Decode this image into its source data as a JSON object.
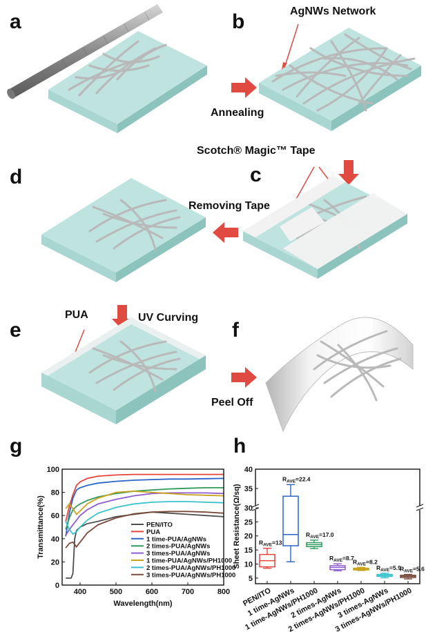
{
  "panels": {
    "a": "a",
    "b": "b",
    "c": "c",
    "d": "d",
    "e": "e",
    "f": "f",
    "g": "g",
    "h": "h"
  },
  "labels": {
    "agnws_network": "AgNWs Network",
    "annealing": "Annealing",
    "tape": "Scotch® Magic™ Tape",
    "removing_tape": "Removing Tape",
    "pua": "PUA",
    "uv_curving": "UV Curving",
    "peel_off": "Peel Off"
  },
  "colors": {
    "substrate_top": "#bfe3df",
    "substrate_front": "#a9d6d1",
    "substrate_side": "#8cc3bd",
    "wire": "#b9b9b9",
    "arrow": "#e04a41",
    "tape": "#f2f2f2"
  },
  "chart_data": [
    {
      "type": "line",
      "panel": "g",
      "xlabel": "Wavelength(nm)",
      "ylabel": "Transmittance(%)",
      "xlim": [
        350,
        800
      ],
      "ylim": [
        0,
        100
      ],
      "xticks": [
        400,
        500,
        600,
        700,
        800
      ],
      "yticks": [
        0,
        20,
        40,
        60,
        80,
        100
      ],
      "legend_position": "bottom-right",
      "series": [
        {
          "name": "PEN/ITO",
          "color": "#4d4d4d",
          "x": [
            360,
            375,
            380,
            385,
            390,
            400,
            420,
            450,
            500,
            550,
            600,
            650,
            700,
            750,
            800
          ],
          "y": [
            6,
            6,
            10,
            40,
            47,
            50,
            53,
            55,
            59,
            61,
            63,
            62,
            61,
            60,
            59
          ]
        },
        {
          "name": "PUA",
          "color": "#e8413a",
          "x": [
            360,
            370,
            380,
            390,
            400,
            420,
            450,
            500,
            550,
            600,
            700,
            800
          ],
          "y": [
            55,
            68,
            78,
            86,
            89,
            92,
            94,
            95,
            95.5,
            95.5,
            95.5,
            95.5
          ]
        },
        {
          "name": "1 time-PUA/AgNWs",
          "color": "#2a63c7",
          "x": [
            360,
            370,
            380,
            390,
            400,
            420,
            450,
            500,
            550,
            600,
            650,
            700,
            750,
            800
          ],
          "y": [
            42,
            62,
            75,
            82,
            84,
            86,
            88,
            89.5,
            90.5,
            91,
            91.5,
            91.5,
            91.8,
            92
          ]
        },
        {
          "name": "2 times-PUA/AgNWs",
          "color": "#2f9a5a",
          "x": [
            360,
            370,
            380,
            390,
            400,
            420,
            450,
            500,
            550,
            600,
            650,
            700,
            750,
            800
          ],
          "y": [
            48,
            58,
            65,
            68,
            70,
            73,
            76,
            79,
            81,
            82,
            83,
            83.5,
            84,
            84
          ]
        },
        {
          "name": "3 times-PUA/AgNWs",
          "color": "#8e5bd1",
          "x": [
            360,
            370,
            380,
            390,
            400,
            420,
            450,
            500,
            550,
            600,
            650,
            700,
            750,
            800
          ],
          "y": [
            43,
            48,
            52,
            56,
            60,
            65,
            70,
            74,
            77,
            79,
            79.5,
            79.5,
            79.5,
            79
          ]
        },
        {
          "name": "1 time-PUA/AgNWs/PH1000",
          "color": "#c9a21a",
          "x": [
            360,
            370,
            380,
            390,
            400,
            420,
            450,
            500,
            550,
            600,
            650,
            700,
            750,
            800
          ],
          "y": [
            66,
            70,
            66,
            61,
            64,
            70,
            75,
            80,
            81,
            80,
            79,
            78,
            77.5,
            77
          ]
        },
        {
          "name": "2 times-PUA/AgNWs/PH1000",
          "color": "#37c1cf",
          "x": [
            360,
            370,
            380,
            390,
            400,
            420,
            450,
            500,
            550,
            600,
            650,
            700,
            750,
            800
          ],
          "y": [
            55,
            48,
            44,
            46,
            50,
            56,
            62,
            67,
            70,
            71.5,
            72,
            72,
            71.5,
            71
          ]
        },
        {
          "name": "3 times-PUA/AgNWs/PH1000",
          "color": "#7a4a3a",
          "x": [
            360,
            370,
            380,
            390,
            400,
            420,
            450,
            500,
            550,
            600,
            650,
            700,
            750,
            800
          ],
          "y": [
            32,
            36,
            37,
            33,
            37,
            45,
            52,
            58,
            61.5,
            63,
            63.5,
            63.5,
            63,
            62
          ]
        }
      ]
    },
    {
      "type": "box",
      "panel": "h",
      "ylabel": "Sheet Resistance(Ω/sq)",
      "y_axis_break": [
        30,
        30
      ],
      "yticks": [
        5,
        10,
        15,
        20,
        25,
        30,
        35,
        40
      ],
      "categories": [
        "PEN/ITO",
        "1 time-AgNWs",
        "1 time-AgNWs/PH1000",
        "2 times-AgNWs",
        "2 times-AgNWs/PH1000",
        "3 times-AgNWs",
        "3 times-AgNWs/PH1000"
      ],
      "annotations": [
        "R_AVE=13.7",
        "R_AVE=22.4",
        "R_AVE=17.0",
        "R_AVE=8.7",
        "R_AVE=8.2",
        "R_AVE=5.9",
        "R_AVE=5.6"
      ],
      "boxes": [
        {
          "color": "#e8413a",
          "min": 8.5,
          "q1": 9,
          "median": 11.2,
          "q3": 13.4,
          "max": 15.6
        },
        {
          "color": "#2a63c7",
          "min": 10.8,
          "q1": 16.5,
          "median": 20.5,
          "q3": 33,
          "max": 36
        },
        {
          "color": "#2f9a5a",
          "min": 15.5,
          "q1": 16.2,
          "median": 16.9,
          "q3": 17.6,
          "max": 18.5
        },
        {
          "color": "#8e5bd1",
          "min": 7.6,
          "q1": 8,
          "median": 8.8,
          "q3": 9.4,
          "max": 10.1
        },
        {
          "color": "#c9a21a",
          "min": 7.7,
          "q1": 7.9,
          "median": 8.2,
          "q3": 8.5,
          "max": 8.8
        },
        {
          "color": "#37c1cf",
          "min": 5.1,
          "q1": 5.6,
          "median": 5.9,
          "q3": 6.3,
          "max": 6.7
        },
        {
          "color": "#7a4a3a",
          "min": 4.7,
          "q1": 5.2,
          "median": 5.6,
          "q3": 6.0,
          "max": 6.3
        }
      ]
    }
  ]
}
